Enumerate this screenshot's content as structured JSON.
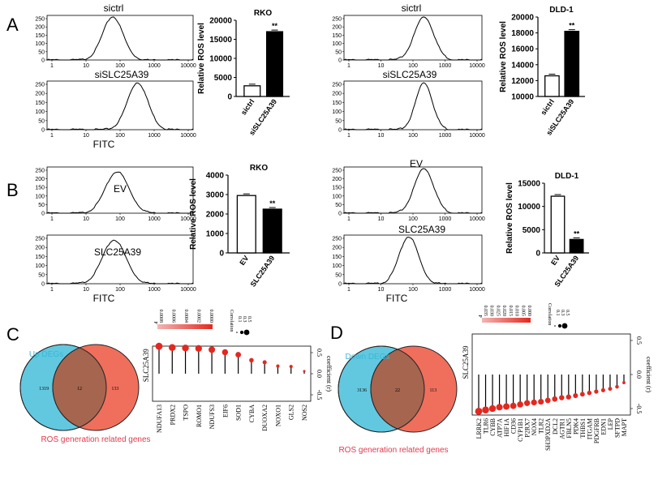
{
  "panels": {
    "A": "A",
    "B": "B",
    "C": "C",
    "D": "D"
  },
  "flow": {
    "y_ticks": [
      "0",
      "50",
      "100",
      "150",
      "200",
      "250"
    ],
    "x_ticks": [
      "1",
      "10",
      "100",
      "1000",
      "10000"
    ],
    "xlabel": "FITC",
    "A_rko_top": "sictrl",
    "A_rko_bottom": "siSLC25A39",
    "A_dld_top": "sictrl",
    "A_dld_bottom": "siSLC25A39",
    "B_rko_top": "EV",
    "B_rko_bottom": "SLC25A39",
    "B_dld_top": "EV",
    "B_dld_bottom": "SLC25A39"
  },
  "chart_data": [
    {
      "id": "A_RKO",
      "type": "bar",
      "title": "RKO",
      "ylabel": "Relative ROS level",
      "categories": [
        "sictrl",
        "siSLC25A39"
      ],
      "values": [
        2800,
        17000
      ],
      "ylim": [
        0,
        20000
      ],
      "yticks": [
        0,
        5000,
        10000,
        15000,
        20000
      ],
      "annotation": "**"
    },
    {
      "id": "A_DLD1",
      "type": "bar",
      "title": "DLD-1",
      "ylabel": "Relative ROS level",
      "categories": [
        "sictrl",
        "siSLC25A39"
      ],
      "values": [
        12600,
        18200
      ],
      "ylim": [
        10000,
        20000
      ],
      "yticks": [
        10000,
        12000,
        14000,
        16000,
        18000,
        20000
      ],
      "annotation": "**"
    },
    {
      "id": "B_RKO",
      "type": "bar",
      "title": "RKO",
      "ylabel": "Relative ROS level",
      "categories": [
        "EV",
        "SLC25A39"
      ],
      "values": [
        2950,
        2250
      ],
      "ylim": [
        0,
        4000
      ],
      "yticks": [
        0,
        1000,
        2000,
        3000,
        4000
      ],
      "annotation": "**"
    },
    {
      "id": "B_DLD1",
      "type": "bar",
      "title": "DLD-1",
      "ylabel": "Relative ROS level",
      "categories": [
        "EV",
        "SLC25A39"
      ],
      "values": [
        12200,
        2900
      ],
      "ylim": [
        0,
        15000
      ],
      "yticks": [
        0,
        5000,
        10000,
        15000
      ],
      "annotation": "**"
    },
    {
      "id": "C_lollipop",
      "type": "scatter",
      "ylabel": "SLC25A39",
      "y2label": "coefficient (r)",
      "categories": [
        "NDUFA13",
        "PRDX2",
        "TSPO",
        "ROMO1",
        "NDUFS3",
        "EIF6",
        "SOD1",
        "CYBA",
        "DUOXA2",
        "NOXO1",
        "GLS2",
        "NOS2"
      ],
      "values": [
        0.65,
        0.62,
        0.61,
        0.6,
        0.57,
        0.51,
        0.45,
        0.32,
        0.27,
        0.18,
        0.17,
        0.06
      ],
      "ylim": [
        -0.5,
        0.5
      ],
      "yticks": [
        "0.5",
        "0.0",
        "-0.5"
      ],
      "legend_p_title": "P",
      "legend_p_ticks": [
        "0.0008",
        "0.0006",
        "0.0004",
        "0.0002",
        "0.0000"
      ],
      "legend_size_title": "Correlation",
      "legend_size_ticks": [
        "0.1",
        "0.3",
        "0.5"
      ]
    },
    {
      "id": "D_lollipop",
      "type": "scatter",
      "ylabel": "SLC25A39",
      "y2label": "coefficient (r)",
      "categories": [
        "LRRK2",
        "TLR6",
        "CYBB",
        "ATP7A",
        "HIF1A",
        "CD36",
        "CYP1B1",
        "P2RX7",
        "NOX4",
        "TLR2",
        "SH3PXD2A",
        "DCL2",
        "AGTR1",
        "FBLN5",
        "PDK4",
        "THBS1",
        "ITGAM",
        "PDGFRB",
        "EDN1",
        "LEP",
        "SFTPD",
        "MAPT"
      ],
      "values": [
        -0.54,
        -0.52,
        -0.5,
        -0.48,
        -0.47,
        -0.46,
        -0.44,
        -0.42,
        -0.41,
        -0.4,
        -0.38,
        -0.36,
        -0.34,
        -0.33,
        -0.31,
        -0.29,
        -0.27,
        -0.25,
        -0.23,
        -0.21,
        -0.18,
        -0.12
      ],
      "ylim": [
        -0.5,
        0.5
      ],
      "yticks": [
        "0.5",
        "0.0",
        "-0.5"
      ],
      "legend_p_title": "P",
      "legend_p_ticks": [
        "0.035",
        "0.030",
        "0.025",
        "0.020",
        "0.015",
        "0.010",
        "0.005",
        "0.000"
      ],
      "legend_size_title": "Correlation",
      "legend_size_ticks": [
        "0.1",
        "0.3",
        "0.5"
      ]
    }
  ],
  "venn_C": {
    "left_label": "Up DEGs",
    "right_label": "ROS generation related genes",
    "left_count": "1319",
    "overlap": "12",
    "right_count": "133"
  },
  "venn_D": {
    "left_label": "Down DEGs",
    "right_label": "ROS generation related genes",
    "left_count": "3136",
    "overlap": "22",
    "right_count": "113"
  },
  "colors": {
    "venn_blue": "#62c8df",
    "venn_red": "#ee6a57",
    "venn_overlap": "#a5654f",
    "point_red": "#e4281f",
    "label_blue": "#39b7d8",
    "label_red": "#e23a4c"
  }
}
